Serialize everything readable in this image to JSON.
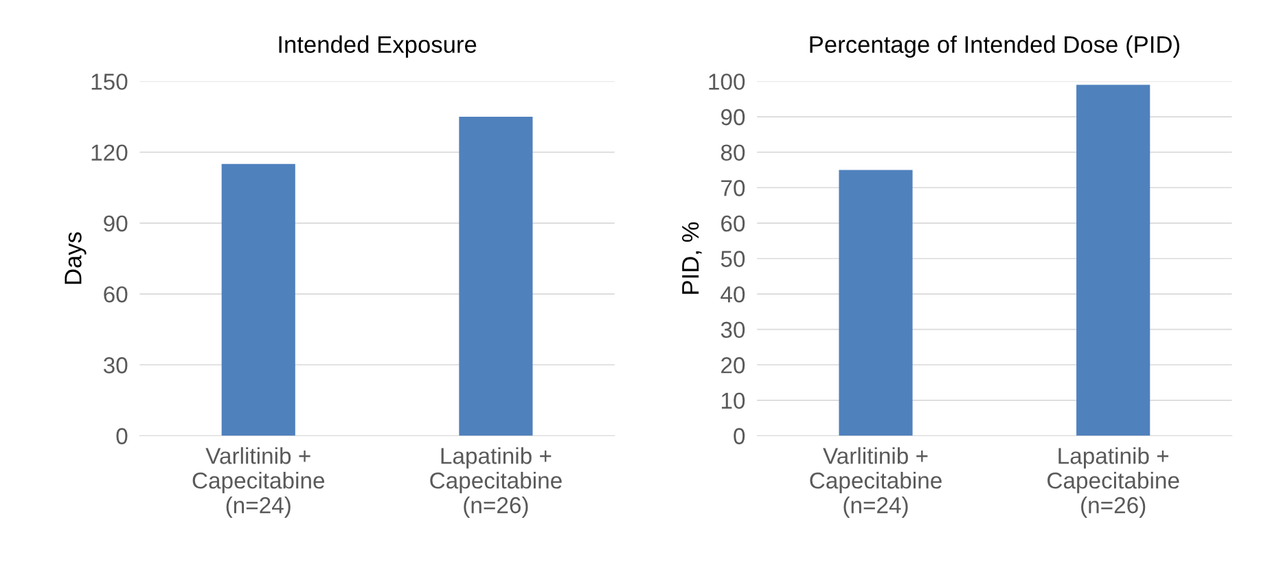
{
  "chart_data": [
    {
      "type": "bar",
      "title": "Intended Exposure",
      "ylabel": "Days",
      "categories": [
        "Varlitinib +\nCapecitabine\n(n=24)",
        "Lapatinib +\nCapecitabine\n(n=26)"
      ],
      "series": [
        {
          "color": "#4f81bd",
          "values": [
            115,
            135
          ]
        }
      ],
      "ylim": [
        0,
        150
      ],
      "yticks": [
        0,
        30,
        60,
        90,
        120,
        150
      ],
      "grid": "y",
      "legend": false
    },
    {
      "type": "bar",
      "title": "Percentage of Intended Dose (PID)",
      "ylabel": "PID, %",
      "categories": [
        "Varlitinib +\nCapecitabine\n(n=24)",
        "Lapatinib +\nCapecitabine\n(n=26)"
      ],
      "series": [
        {
          "color": "#4f81bd",
          "values": [
            75,
            99
          ]
        }
      ],
      "ylim": [
        0,
        100
      ],
      "yticks": [
        0,
        10,
        20,
        30,
        40,
        50,
        60,
        70,
        80,
        90,
        100
      ],
      "grid": "y",
      "legend": false
    }
  ]
}
